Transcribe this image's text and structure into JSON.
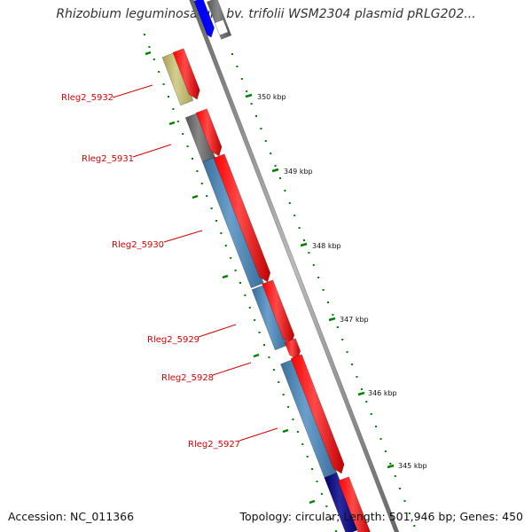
{
  "title": "Rhizobium leguminosarum bv. trifolii WSM2304 plasmid pRLG202...",
  "footer": {
    "accession": "Accession: NC_011366",
    "summary": "Topology: circular; Length: 501,946 bp; Genes: 450"
  },
  "scale_ticks": [
    {
      "label": "350 kbp"
    },
    {
      "label": "349 kbp"
    },
    {
      "label": "348 kbp"
    },
    {
      "label": "347 kbp"
    },
    {
      "label": "346 kbp"
    },
    {
      "label": "345 kbp"
    }
  ],
  "gene_labels": [
    {
      "label": "Rleg2_5932"
    },
    {
      "label": "Rleg2_5931"
    },
    {
      "label": "Rleg2_5930"
    },
    {
      "label": "Rleg2_5929"
    },
    {
      "label": "Rleg2_5928"
    },
    {
      "label": "Rleg2_5927"
    }
  ],
  "colors": {
    "cds": "#ff0000",
    "blue_feature": "#4682b4",
    "tan_feature": "#bdb76b",
    "gray_feature": "#696969",
    "navy_feature": "#000080",
    "blue_top": "#0000ff",
    "backbone": "#888888",
    "tick": "#008000",
    "label": "#d40000"
  }
}
